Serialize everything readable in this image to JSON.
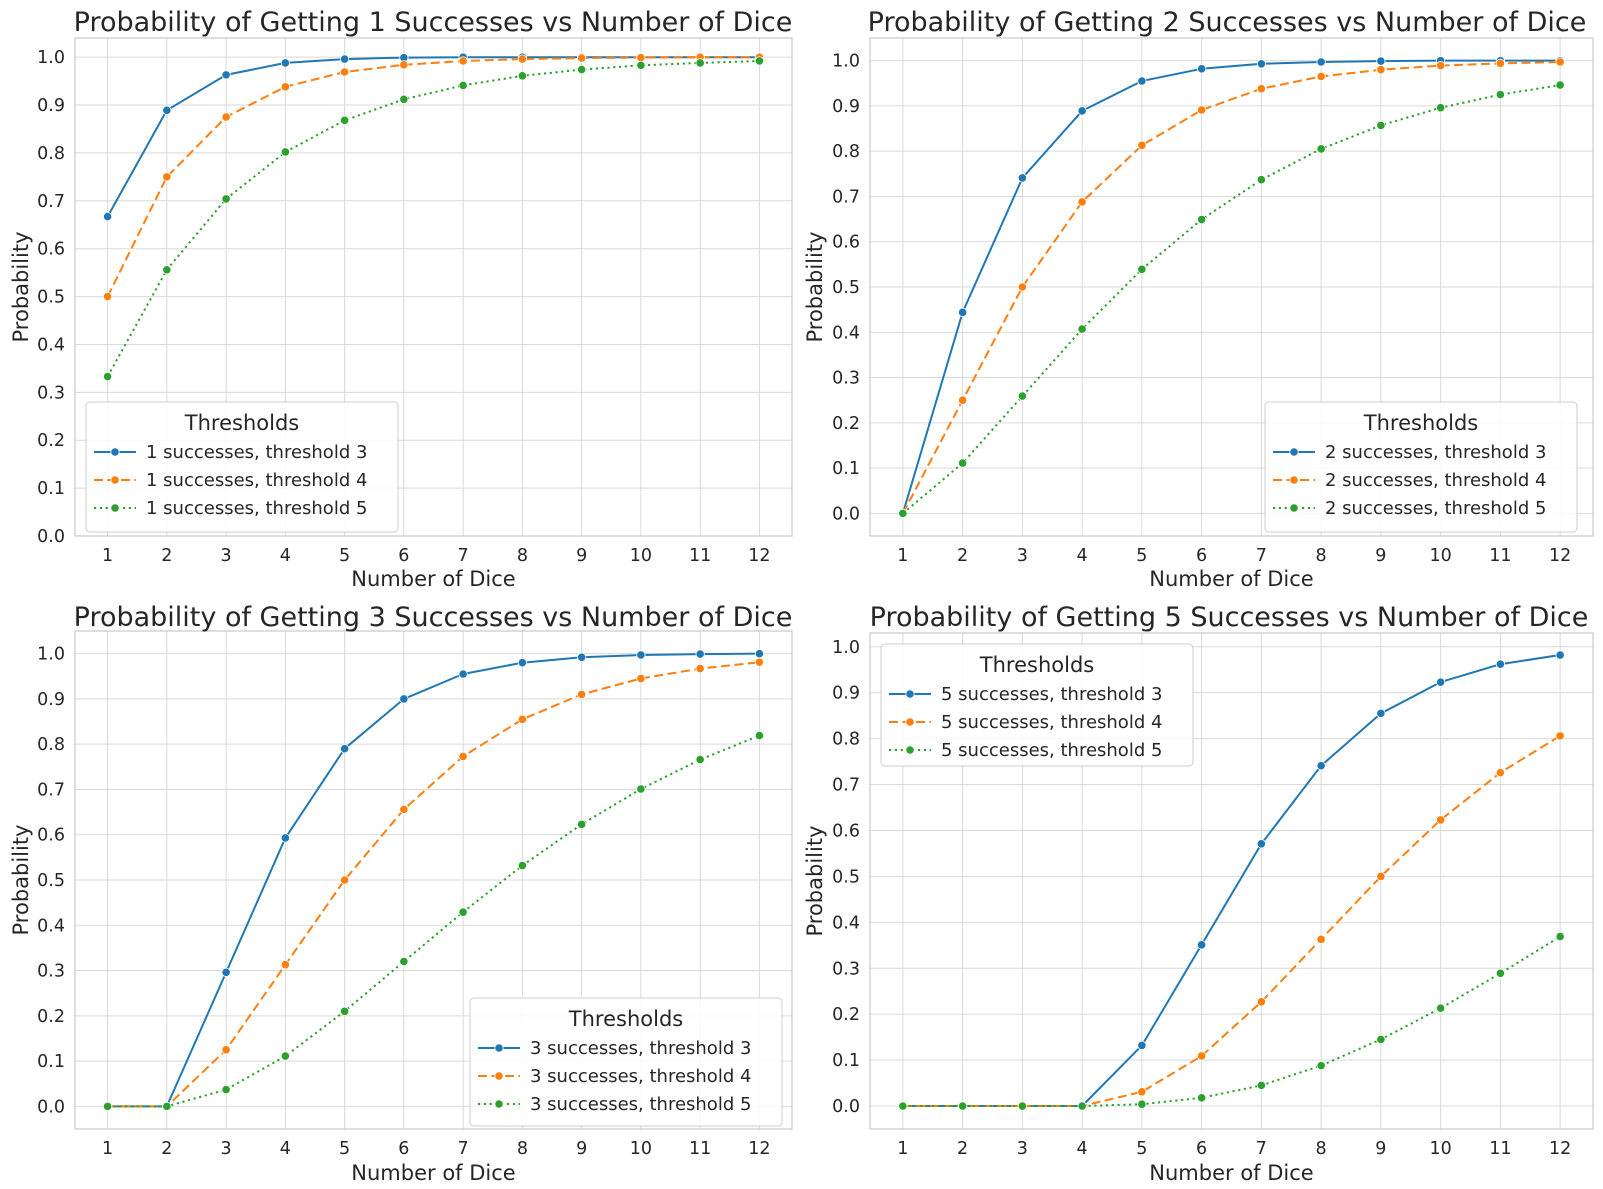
{
  "colors": {
    "background": "#ffffff",
    "plot_background": "#ffffff",
    "grid": "#d9d9d9",
    "spine": "#c8c8c8",
    "text": "#262626",
    "series": [
      "#1f77b4",
      "#ff7f0e",
      "#2ca02c"
    ]
  },
  "chart_data": [
    {
      "type": "line",
      "title": "Probability of Getting 1 Successes vs Number of Dice",
      "xlabel": "Number of Dice",
      "ylabel": "Probability",
      "x": [
        1,
        2,
        3,
        4,
        5,
        6,
        7,
        8,
        9,
        10,
        11,
        12
      ],
      "xlim": [
        0.45,
        12.55
      ],
      "ylim": [
        0,
        1.04
      ],
      "yticks": [
        0.0,
        0.1,
        0.2,
        0.3,
        0.4,
        0.5,
        0.6,
        0.7,
        0.8,
        0.9,
        1.0
      ],
      "grid": true,
      "legend": {
        "title": "Thresholds",
        "placement": "lower-left"
      },
      "series": [
        {
          "name": "1 successes, threshold 3",
          "line_style": "solid",
          "values": [
            0.667,
            0.889,
            0.963,
            0.988,
            0.996,
            0.999,
            1.0,
            1.0,
            1.0,
            1.0,
            1.0,
            1.0
          ]
        },
        {
          "name": "1 successes, threshold 4",
          "line_style": "dashed",
          "values": [
            0.5,
            0.75,
            0.875,
            0.938,
            0.969,
            0.984,
            0.992,
            0.996,
            0.998,
            0.999,
            1.0,
            1.0
          ]
        },
        {
          "name": "1 successes, threshold 5",
          "line_style": "dotted",
          "values": [
            0.333,
            0.556,
            0.704,
            0.802,
            0.868,
            0.912,
            0.941,
            0.961,
            0.974,
            0.983,
            0.988,
            0.992
          ]
        }
      ]
    },
    {
      "type": "line",
      "title": "Probability of Getting 2 Successes vs Number of Dice",
      "xlabel": "Number of Dice",
      "ylabel": "Probability",
      "x": [
        1,
        2,
        3,
        4,
        5,
        6,
        7,
        8,
        9,
        10,
        11,
        12
      ],
      "xlim": [
        0.45,
        12.55
      ],
      "ylim": [
        -0.05,
        1.05
      ],
      "yticks": [
        0.0,
        0.1,
        0.2,
        0.3,
        0.4,
        0.5,
        0.6,
        0.7,
        0.8,
        0.9,
        1.0
      ],
      "grid": true,
      "legend": {
        "title": "Thresholds",
        "placement": "lower-right"
      },
      "series": [
        {
          "name": "2 successes, threshold 3",
          "line_style": "solid",
          "values": [
            0.0,
            0.444,
            0.741,
            0.889,
            0.955,
            0.982,
            0.993,
            0.997,
            0.999,
            1.0,
            1.0,
            1.0
          ]
        },
        {
          "name": "2 successes, threshold 4",
          "line_style": "dashed",
          "values": [
            0.0,
            0.25,
            0.5,
            0.688,
            0.813,
            0.891,
            0.938,
            0.965,
            0.98,
            0.989,
            0.994,
            0.997
          ]
        },
        {
          "name": "2 successes, threshold 5",
          "line_style": "dotted",
          "values": [
            0.0,
            0.111,
            0.259,
            0.407,
            0.539,
            0.649,
            0.737,
            0.805,
            0.857,
            0.896,
            0.925,
            0.946
          ]
        }
      ]
    },
    {
      "type": "line",
      "title": "Probability of Getting 3 Successes vs Number of Dice",
      "xlabel": "Number of Dice",
      "ylabel": "Probability",
      "x": [
        1,
        2,
        3,
        4,
        5,
        6,
        7,
        8,
        9,
        10,
        11,
        12
      ],
      "xlim": [
        0.45,
        12.55
      ],
      "ylim": [
        -0.05,
        1.05
      ],
      "yticks": [
        0.0,
        0.1,
        0.2,
        0.3,
        0.4,
        0.5,
        0.6,
        0.7,
        0.8,
        0.9,
        1.0
      ],
      "grid": true,
      "legend": {
        "title": "Thresholds",
        "placement": "lower-right"
      },
      "series": [
        {
          "name": "3 successes, threshold 3",
          "line_style": "solid",
          "values": [
            0.0,
            0.0,
            0.296,
            0.593,
            0.79,
            0.9,
            0.955,
            0.98,
            0.992,
            0.997,
            0.999,
            1.0
          ]
        },
        {
          "name": "3 successes, threshold 4",
          "line_style": "dashed",
          "values": [
            0.0,
            0.0,
            0.125,
            0.313,
            0.5,
            0.656,
            0.773,
            0.855,
            0.91,
            0.945,
            0.967,
            0.981
          ]
        },
        {
          "name": "3 successes, threshold 5",
          "line_style": "dotted",
          "values": [
            0.0,
            0.0,
            0.037,
            0.111,
            0.21,
            0.32,
            0.429,
            0.532,
            0.623,
            0.701,
            0.766,
            0.819
          ]
        }
      ]
    },
    {
      "type": "line",
      "title": "Probability of Getting 5 Successes vs Number of Dice",
      "xlabel": "Number of Dice",
      "ylabel": "Probability",
      "x": [
        1,
        2,
        3,
        4,
        5,
        6,
        7,
        8,
        9,
        10,
        11,
        12
      ],
      "xlim": [
        0.45,
        12.55
      ],
      "ylim": [
        -0.05,
        1.03
      ],
      "yticks": [
        0.0,
        0.1,
        0.2,
        0.3,
        0.4,
        0.5,
        0.6,
        0.7,
        0.8,
        0.9,
        1.0
      ],
      "grid": true,
      "legend": {
        "title": "Thresholds",
        "placement": "upper-left"
      },
      "series": [
        {
          "name": "5 successes, threshold 3",
          "line_style": "solid",
          "values": [
            0.0,
            0.0,
            0.0,
            0.0,
            0.132,
            0.351,
            0.571,
            0.741,
            0.855,
            0.923,
            0.962,
            0.982
          ]
        },
        {
          "name": "5 successes, threshold 4",
          "line_style": "dashed",
          "values": [
            0.0,
            0.0,
            0.0,
            0.0,
            0.031,
            0.109,
            0.227,
            0.363,
            0.5,
            0.623,
            0.726,
            0.806
          ]
        },
        {
          "name": "5 successes, threshold 5",
          "line_style": "dotted",
          "values": [
            0.0,
            0.0,
            0.0,
            0.0,
            0.004,
            0.018,
            0.045,
            0.088,
            0.145,
            0.213,
            0.289,
            0.369
          ]
        }
      ]
    }
  ]
}
